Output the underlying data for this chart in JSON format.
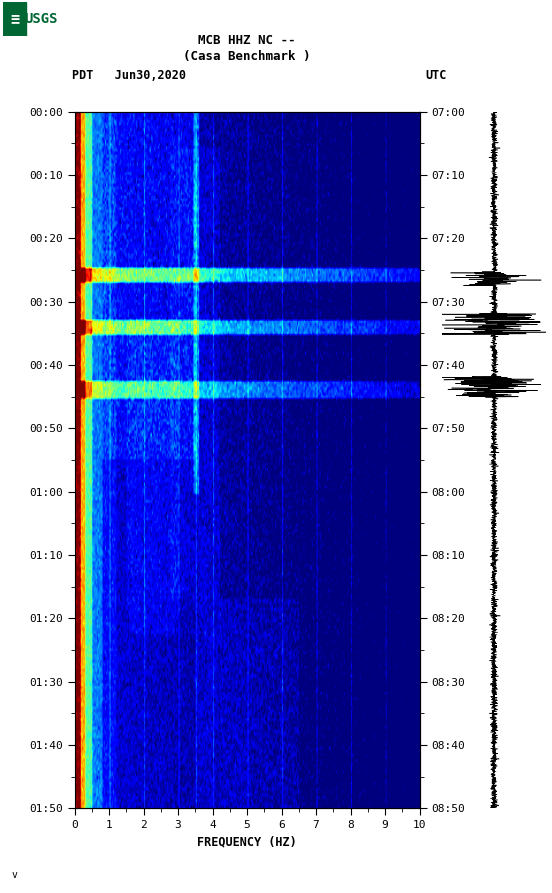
{
  "title_line1": "MCB HHZ NC --",
  "title_line2": "(Casa Benchmark )",
  "date_label": "PDT   Jun30,2020",
  "utc_label": "UTC",
  "freq_label": "FREQUENCY (HZ)",
  "freq_min": 0,
  "freq_max": 10,
  "time_ticks_left": [
    "00:00",
    "00:10",
    "00:20",
    "00:30",
    "00:40",
    "00:50",
    "01:00",
    "01:10",
    "01:20",
    "01:30",
    "01:40",
    "01:50"
  ],
  "time_ticks_right": [
    "07:00",
    "07:10",
    "07:20",
    "07:30",
    "07:40",
    "07:50",
    "08:00",
    "08:10",
    "08:20",
    "08:30",
    "08:40",
    "08:50"
  ],
  "freq_ticks": [
    0,
    1,
    2,
    3,
    4,
    5,
    6,
    7,
    8,
    9,
    10
  ],
  "bg_color": "#ffffff",
  "usgs_green": "#006633",
  "spec_vmin": -2.0,
  "spec_vmax": 3.5,
  "n_time_bins": 240,
  "n_freq_bins": 300,
  "random_seed": 7
}
